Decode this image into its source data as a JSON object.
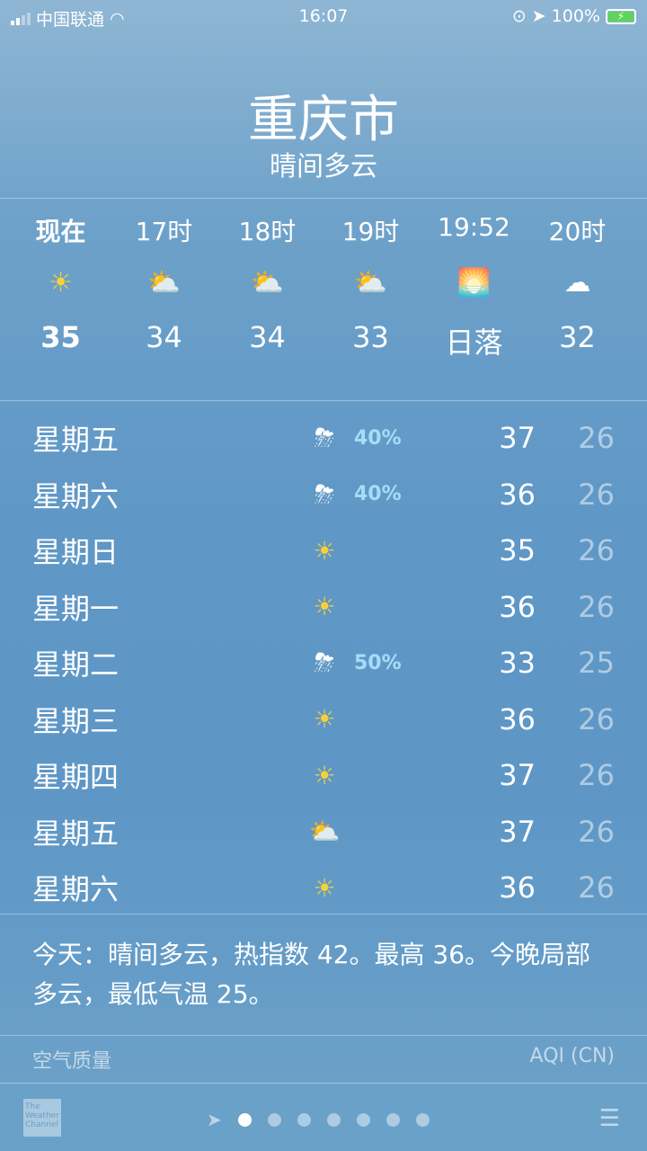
{
  "status": {
    "carrier": "中国联通",
    "time": "16:07",
    "battery": "100%"
  },
  "header": {
    "city": "重庆市",
    "condition": "晴间多云"
  },
  "hourly": [
    {
      "time": "现在",
      "icon": "sun",
      "temp": "35"
    },
    {
      "time": "17时",
      "icon": "partly-cloudy",
      "temp": "34"
    },
    {
      "time": "18时",
      "icon": "partly-cloudy",
      "temp": "34"
    },
    {
      "time": "19时",
      "icon": "partly-cloudy",
      "temp": "33"
    },
    {
      "time": "19:52",
      "icon": "sunset",
      "temp": "日落"
    },
    {
      "time": "20时",
      "icon": "moon-cloud",
      "temp": "32"
    }
  ],
  "daily": [
    {
      "day": "星期五",
      "icon": "thunderstorm",
      "precip": "40%",
      "high": "37",
      "low": "26"
    },
    {
      "day": "星期六",
      "icon": "thunderstorm",
      "precip": "40%",
      "high": "36",
      "low": "26"
    },
    {
      "day": "星期日",
      "icon": "sun",
      "precip": "",
      "high": "35",
      "low": "26"
    },
    {
      "day": "星期一",
      "icon": "sun",
      "precip": "",
      "high": "36",
      "low": "26"
    },
    {
      "day": "星期二",
      "icon": "thunderstorm",
      "precip": "50%",
      "high": "33",
      "low": "25"
    },
    {
      "day": "星期三",
      "icon": "sun",
      "precip": "",
      "high": "36",
      "low": "26"
    },
    {
      "day": "星期四",
      "icon": "sun",
      "precip": "",
      "high": "37",
      "low": "26"
    },
    {
      "day": "星期五",
      "icon": "partly-cloudy",
      "precip": "",
      "high": "37",
      "low": "26"
    },
    {
      "day": "星期六",
      "icon": "sun",
      "precip": "",
      "high": "36",
      "low": "26"
    }
  ],
  "summary": "今天：晴间多云，热指数 42。最高 36。今晚局部多云，最低气温 25。",
  "air_quality": {
    "label": "空气质量",
    "index_label": "AQI (CN)"
  },
  "footer": {
    "logo": "The Weather Channel",
    "pages": 7,
    "current_page": 1
  }
}
